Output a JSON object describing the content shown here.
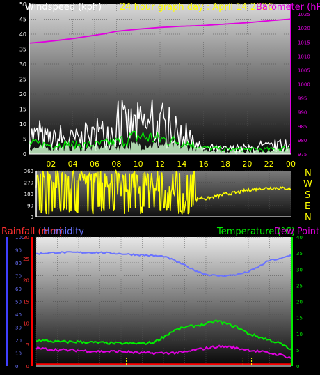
{
  "header": {
    "left_title": "Windspeed (kph)",
    "center_title": "24 hour graph day : April 14 2026",
    "right_title": "Barometer (hPa)"
  },
  "colors": {
    "white": "#ffffff",
    "green": "#00ee00",
    "magenta": "#e000e0",
    "yellow": "#ffff00",
    "red": "#ff0000",
    "blue": "#6a73ff",
    "blue_axis": "#4040ff",
    "compass_letters": "#ffff00"
  },
  "chart_data": [
    {
      "type": "line",
      "name": "wind-baro",
      "x_ticks": [
        "02",
        "04",
        "06",
        "08",
        "10",
        "12",
        "14",
        "16",
        "18",
        "20",
        "22",
        "00"
      ],
      "y_left_ticks": [
        0,
        5,
        10,
        15,
        20,
        25,
        30,
        35,
        40,
        45,
        50
      ],
      "y_left_range": [
        0,
        50
      ],
      "y_right_ticks": [
        975,
        980,
        985,
        990,
        995,
        1000,
        1005,
        1010,
        1015,
        1020,
        1025
      ],
      "y_right_range": [
        975,
        1028.5
      ],
      "grid": true,
      "series": [
        {
          "label": "barometer",
          "color": "magenta",
          "axis": "right",
          "x": [
            0,
            2,
            4,
            6,
            7,
            8,
            10,
            12,
            14,
            16,
            18,
            20,
            22,
            24
          ],
          "values": [
            1014.6,
            1015.3,
            1016.2,
            1017.4,
            1018.0,
            1018.8,
            1019.6,
            1020.2,
            1020.6,
            1020.9,
            1021.4,
            1021.9,
            1022.6,
            1023.2
          ]
        },
        {
          "label": "wind_gust",
          "color": "white",
          "axis": "left",
          "noise": "gust",
          "x": [
            0,
            2,
            4,
            6,
            8,
            10,
            12,
            14,
            15,
            16,
            18,
            20,
            22,
            24
          ],
          "values": [
            8,
            6,
            6,
            7,
            11,
            12,
            11,
            8,
            4,
            2,
            2,
            2,
            3,
            3
          ]
        },
        {
          "label": "wind_average",
          "color": "green",
          "axis": "left",
          "noise": "avg",
          "x": [
            0,
            2,
            4,
            6,
            8,
            10,
            12,
            14,
            16,
            18,
            20,
            22,
            24
          ],
          "values": [
            3.5,
            3,
            3,
            3,
            4,
            6,
            5,
            4,
            2,
            1.5,
            1.5,
            1.5,
            2
          ]
        },
        {
          "label": "wind_fill",
          "color": "#c9f5c9",
          "axis": "left",
          "noise": "fill",
          "x": [
            0,
            2,
            4,
            6,
            8,
            10,
            12,
            14,
            16,
            18,
            20,
            22,
            24
          ],
          "values": [
            2,
            2,
            2,
            2,
            2.5,
            3,
            3,
            2.5,
            1.5,
            1,
            1,
            1,
            1.5
          ]
        }
      ]
    },
    {
      "type": "scatter",
      "name": "wind-direction",
      "y_ticks": [
        0,
        90,
        180,
        270,
        360
      ],
      "y_tick_labels": [
        "0",
        "90",
        "180",
        "270",
        "360"
      ],
      "y_range": [
        0,
        360
      ],
      "compass": [
        "N",
        "W",
        "S",
        "E",
        "N"
      ],
      "series": [
        {
          "label": "direction",
          "color": "yellow",
          "x": [
            0,
            2,
            4,
            6,
            8,
            10,
            12,
            14,
            15,
            15.5,
            16,
            17,
            18,
            19,
            20,
            21,
            22,
            23,
            24
          ],
          "values": [
            290,
            260,
            270,
            250,
            200,
            250,
            260,
            150,
            130,
            150,
            140,
            160,
            180,
            190,
            210,
            220,
            225,
            225,
            220
          ]
        }
      ]
    },
    {
      "type": "line",
      "name": "rain-humidity-temp",
      "left_label_1": "Rainfall (mm)",
      "left_label_2": "Humidity",
      "right_label_1": "Temperature (°C)",
      "right_label_2": "Dew Point",
      "y_left_outer_ticks": [
        0,
        10,
        20,
        30,
        40,
        50,
        60,
        70,
        80,
        90,
        100
      ],
      "y_left_inner_ticks": [
        0,
        5,
        10,
        15,
        20,
        25,
        30
      ],
      "y_right_ticks": [
        0,
        5,
        10,
        15,
        20,
        25,
        30,
        35,
        40
      ],
      "y_left_outer_range": [
        0,
        100
      ],
      "y_left_inner_range": [
        0,
        30
      ],
      "y_right_range": [
        0,
        40
      ],
      "series": [
        {
          "label": "humidity",
          "color": "blue",
          "axis": "left_outer",
          "x": [
            0,
            2,
            4,
            6,
            8,
            10,
            12,
            13,
            14,
            15,
            16,
            17,
            18,
            19,
            20,
            21,
            22,
            23,
            24
          ],
          "values": [
            87,
            88,
            88,
            88,
            87,
            86,
            85,
            82,
            78,
            74,
            71,
            70,
            70,
            71,
            73,
            77,
            82,
            83,
            86
          ]
        },
        {
          "label": "temperature",
          "color": "green",
          "axis": "right",
          "x": [
            0,
            2,
            4,
            6,
            8,
            10,
            11,
            12,
            13,
            14,
            15,
            16,
            17,
            18,
            19,
            20,
            21,
            22,
            23,
            24
          ],
          "values": [
            8,
            7.5,
            7.5,
            7.2,
            7,
            7,
            7.2,
            9,
            11,
            12,
            12.5,
            13,
            14,
            13,
            12,
            10,
            9,
            8,
            7,
            5
          ]
        },
        {
          "label": "dew_point",
          "color": "magenta",
          "axis": "right",
          "x": [
            0,
            2,
            4,
            6,
            8,
            10,
            12,
            14,
            15,
            16,
            17,
            18,
            19,
            20,
            21,
            22,
            23,
            24
          ],
          "values": [
            5.5,
            5,
            4.8,
            4.5,
            4.5,
            4,
            4,
            4.2,
            5,
            5.5,
            6,
            6,
            5.5,
            5,
            4.5,
            4,
            3.5,
            2.5
          ]
        },
        {
          "label": "rainfall",
          "color": "red",
          "axis": "left_inner",
          "x": [
            0,
            24
          ],
          "values": [
            0.4,
            0.4
          ]
        }
      ]
    }
  ]
}
